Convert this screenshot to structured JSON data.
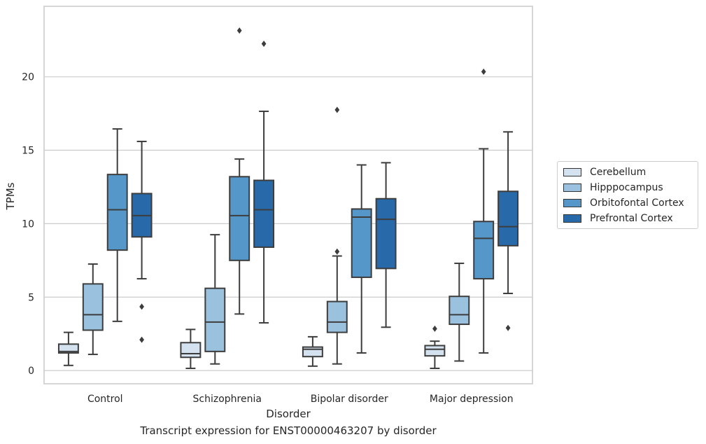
{
  "caption": "Transcript expression for ENST00000463207 by disorder",
  "chart_data": {
    "type": "box",
    "xlabel": "Disorder",
    "ylabel": "TPMs",
    "ylim": [
      -0.9,
      24.8
    ],
    "yticks": [
      0,
      5,
      10,
      15,
      20
    ],
    "grid": "horizontal",
    "legend_position": "right",
    "categories": [
      "Control",
      "Schizophrenia",
      "Bipolar disorder",
      "Major depression"
    ],
    "series": [
      {
        "name": "Cerebellum",
        "color": "#d4e2f0",
        "boxes": [
          {
            "whislo": 0.35,
            "q1": 1.2,
            "med": 1.3,
            "q3": 1.8,
            "whishi": 2.6,
            "fliers": []
          },
          {
            "whislo": 0.15,
            "q1": 0.9,
            "med": 1.15,
            "q3": 1.9,
            "whishi": 2.8,
            "fliers": []
          },
          {
            "whislo": 0.3,
            "q1": 0.95,
            "med": 1.45,
            "q3": 1.6,
            "whishi": 2.3,
            "fliers": []
          },
          {
            "whislo": 0.15,
            "q1": 1.0,
            "med": 1.45,
            "q3": 1.7,
            "whishi": 2.0,
            "fliers": [
              2.85
            ]
          }
        ]
      },
      {
        "name": "Hipppocampus",
        "color": "#9ac1dd",
        "boxes": [
          {
            "whislo": 1.1,
            "q1": 2.75,
            "med": 3.8,
            "q3": 5.9,
            "whishi": 7.25,
            "fliers": []
          },
          {
            "whislo": 0.45,
            "q1": 1.3,
            "med": 3.3,
            "q3": 5.6,
            "whishi": 9.25,
            "fliers": []
          },
          {
            "whislo": 0.45,
            "q1": 2.6,
            "med": 3.3,
            "q3": 4.7,
            "whishi": 7.8,
            "fliers": [
              8.1,
              17.75
            ]
          },
          {
            "whislo": 0.65,
            "q1": 3.15,
            "med": 3.8,
            "q3": 5.05,
            "whishi": 7.3,
            "fliers": []
          }
        ]
      },
      {
        "name": "Orbitofontal Cortex",
        "color": "#5597c9",
        "boxes": [
          {
            "whislo": 3.35,
            "q1": 8.2,
            "med": 10.95,
            "q3": 13.35,
            "whishi": 16.45,
            "fliers": []
          },
          {
            "whislo": 3.85,
            "q1": 7.5,
            "med": 10.55,
            "q3": 13.2,
            "whishi": 14.4,
            "fliers": [
              23.15
            ]
          },
          {
            "whislo": 1.2,
            "q1": 6.35,
            "med": 10.45,
            "q3": 11.0,
            "whishi": 14.0,
            "fliers": []
          },
          {
            "whislo": 1.2,
            "q1": 6.25,
            "med": 9.0,
            "q3": 10.15,
            "whishi": 15.1,
            "fliers": [
              20.35
            ]
          }
        ]
      },
      {
        "name": "Prefrontal Cortex",
        "color": "#2869aa",
        "boxes": [
          {
            "whislo": 6.25,
            "q1": 9.1,
            "med": 10.55,
            "q3": 12.05,
            "whishi": 15.6,
            "fliers": [
              4.35,
              2.1
            ]
          },
          {
            "whislo": 3.25,
            "q1": 8.4,
            "med": 10.95,
            "q3": 12.95,
            "whishi": 17.65,
            "fliers": [
              22.25
            ]
          },
          {
            "whislo": 2.95,
            "q1": 6.95,
            "med": 10.3,
            "q3": 11.7,
            "whishi": 14.15,
            "fliers": []
          },
          {
            "whislo": 5.25,
            "q1": 8.5,
            "med": 9.8,
            "q3": 12.2,
            "whishi": 16.25,
            "fliers": [
              2.9
            ]
          }
        ]
      }
    ]
  }
}
